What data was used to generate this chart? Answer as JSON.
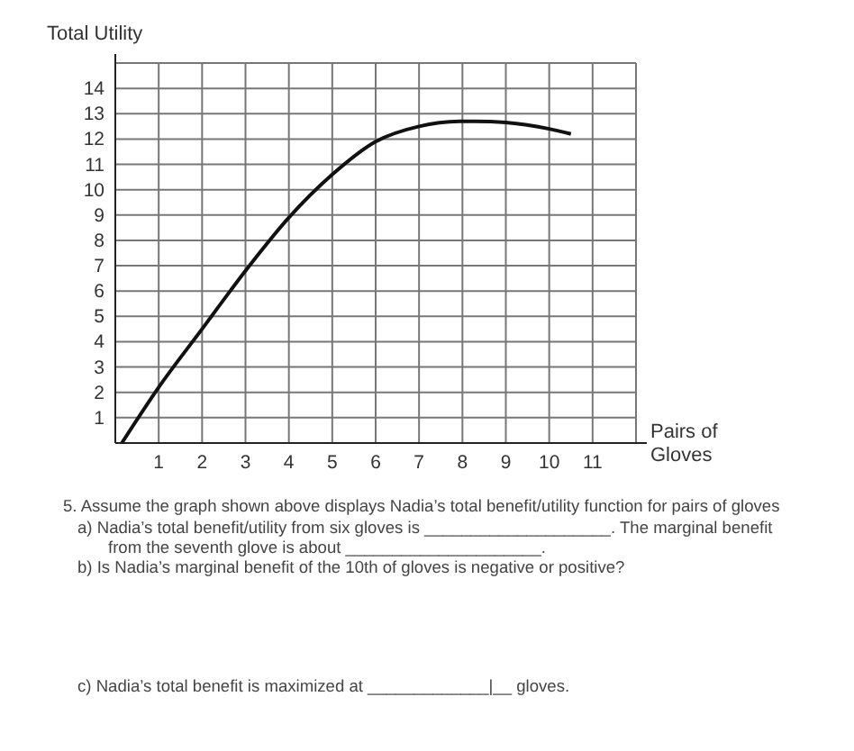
{
  "chart_data": {
    "type": "line",
    "ylabel": "Total Utility",
    "xlabel": "Pairs of Gloves",
    "x": [
      0.15,
      1,
      2,
      3,
      4,
      5,
      6,
      7,
      8,
      8.3,
      9,
      10,
      10.5
    ],
    "series": [
      {
        "color": "#111111",
        "values": [
          0,
          2.2,
          4.5,
          6.8,
          8.9,
          10.6,
          11.9,
          12.5,
          12.7,
          12.7,
          12.65,
          12.4,
          12.2
        ]
      }
    ],
    "xlim": [
      0,
      12
    ],
    "ylim": [
      0,
      15
    ],
    "xticks": [
      1,
      2,
      3,
      4,
      5,
      6,
      7,
      8,
      9,
      10,
      11,
      {
        "value": 12,
        "label": null
      }
    ],
    "yticks": [
      1,
      2,
      3,
      4,
      5,
      6,
      7,
      8,
      9,
      10,
      11,
      12,
      13,
      14,
      {
        "value": 15,
        "label": null
      }
    ],
    "grid": true,
    "marker": "none",
    "line_style": "solid",
    "annotations": [
      "5.  Assume the graph shown above displays Nadia’s total benefit/utility function for pairs of gloves",
      "a)  Nadia’s total benefit/utility from six gloves is ____________________. The marginal  benefit",
      "from the seventh glove is  about _____________________.",
      "b)  Is Nadia’s marginal benefit of the 10th of gloves is negative or positive?",
      "c)  Nadia’s total benefit is maximized at _____________|__ gloves."
    ]
  }
}
